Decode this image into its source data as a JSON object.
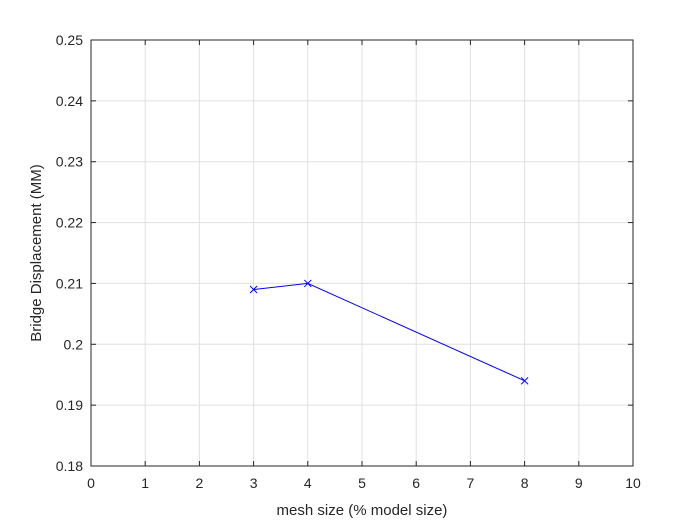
{
  "chart_data": {
    "type": "line",
    "title": "",
    "xlabel": "mesh size (% model size)",
    "ylabel": "Bridge Displacement (MM)",
    "xlim": [
      0,
      10
    ],
    "ylim": [
      0.18,
      0.25
    ],
    "xticks": [
      0,
      1,
      2,
      3,
      4,
      5,
      6,
      7,
      8,
      9,
      10
    ],
    "yticks": [
      0.18,
      0.19,
      0.2,
      0.21,
      0.22,
      0.23,
      0.24,
      0.25
    ],
    "xtick_labels": [
      "0",
      "1",
      "2",
      "3",
      "4",
      "5",
      "6",
      "7",
      "8",
      "9",
      "10"
    ],
    "ytick_labels": [
      "0.18",
      "0.19",
      "0.2",
      "0.21",
      "0.22",
      "0.23",
      "0.24",
      "0.25"
    ],
    "grid": true,
    "series": [
      {
        "x": [
          3,
          4,
          8
        ],
        "y": [
          0.209,
          0.21,
          0.194
        ],
        "color": "#0000ff",
        "marker": "x"
      }
    ]
  }
}
